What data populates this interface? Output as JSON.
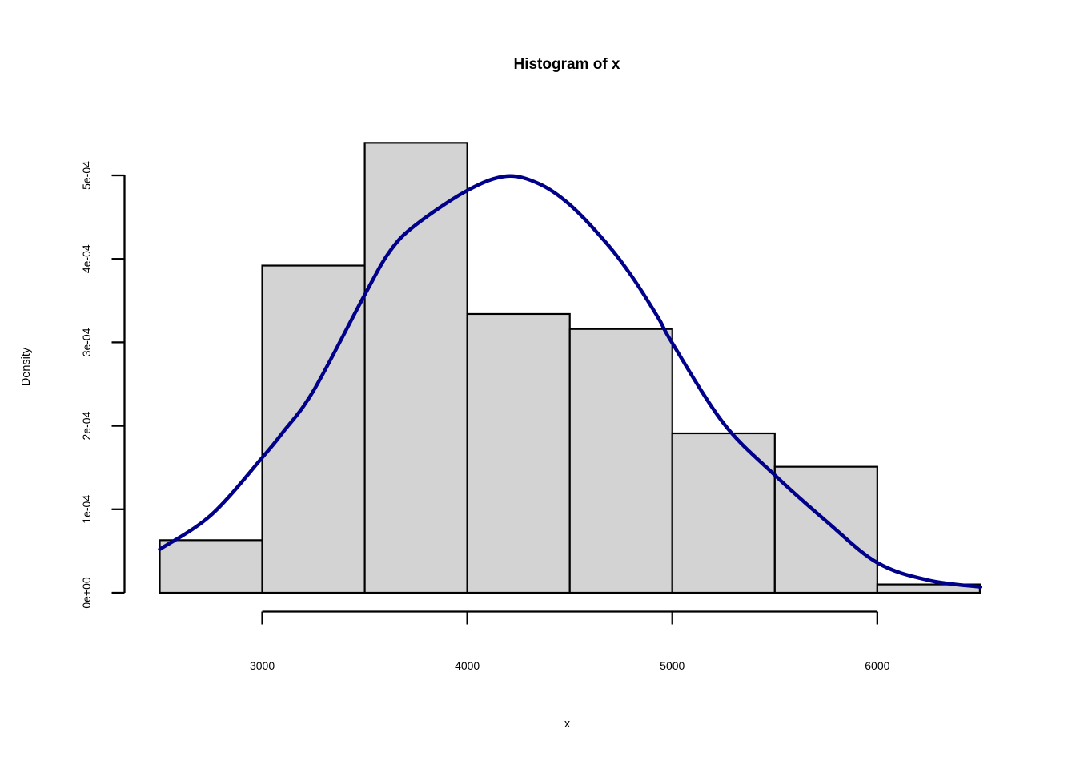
{
  "page": {
    "background": "#FFFFFF"
  },
  "chart_data": {
    "type": "histogram",
    "title": "Histogram of x",
    "xlabel": "x",
    "ylabel": "Density",
    "grid": false,
    "legend": null,
    "xlim": [
      2500,
      6500
    ],
    "ylim": [
      0,
      0.0005
    ],
    "x_ticks": [
      {
        "value": 3000,
        "label": "3000"
      },
      {
        "value": 4000,
        "label": "4000"
      },
      {
        "value": 5000,
        "label": "5000"
      },
      {
        "value": 6000,
        "label": "6000"
      }
    ],
    "y_ticks": [
      {
        "value": 0.0,
        "label": "0e+00"
      },
      {
        "value": 0.0001,
        "label": "1e-04"
      },
      {
        "value": 0.0002,
        "label": "2e-04"
      },
      {
        "value": 0.0003,
        "label": "3e-04"
      },
      {
        "value": 0.0004,
        "label": "4e-04"
      },
      {
        "value": 0.0005,
        "label": "5e-04"
      }
    ],
    "bins": [
      {
        "from": 2500,
        "to": 3000,
        "density": 6.3e-05
      },
      {
        "from": 3000,
        "to": 3500,
        "density": 0.000392
      },
      {
        "from": 3500,
        "to": 4000,
        "density": 0.000539
      },
      {
        "from": 4000,
        "to": 4500,
        "density": 0.000334
      },
      {
        "from": 4500,
        "to": 5000,
        "density": 0.000316
      },
      {
        "from": 5000,
        "to": 5500,
        "density": 0.000191
      },
      {
        "from": 5500,
        "to": 6000,
        "density": 0.000151
      },
      {
        "from": 6000,
        "to": 6500,
        "density": 1e-05
      }
    ],
    "density_curve": {
      "points": [
        [
          2500,
          5.2e-05
        ],
        [
          2750,
          9.3e-05
        ],
        [
          3000,
          0.000162
        ],
        [
          3100,
          0.000192
        ],
        [
          3250,
          0.000242
        ],
        [
          3500,
          0.000357
        ],
        [
          3625,
          0.00041
        ],
        [
          3750,
          0.000441
        ],
        [
          4000,
          0.000482
        ],
        [
          4190,
          0.000499
        ],
        [
          4350,
          0.00049
        ],
        [
          4500,
          0.000465
        ],
        [
          4675,
          0.00042
        ],
        [
          4800,
          0.00038
        ],
        [
          4930,
          0.00033
        ],
        [
          5000,
          0.000299
        ],
        [
          5250,
          0.000203
        ],
        [
          5500,
          0.000141
        ],
        [
          5750,
          8.6e-05
        ],
        [
          6000,
          3.6e-05
        ],
        [
          6250,
          1.5e-05
        ],
        [
          6500,
          7e-06
        ]
      ]
    },
    "colors": {
      "bar_fill": "#D3D3D3",
      "bar_border": "#000000",
      "curve": "#00008B",
      "axis": "#000000",
      "text": "#000000"
    }
  }
}
